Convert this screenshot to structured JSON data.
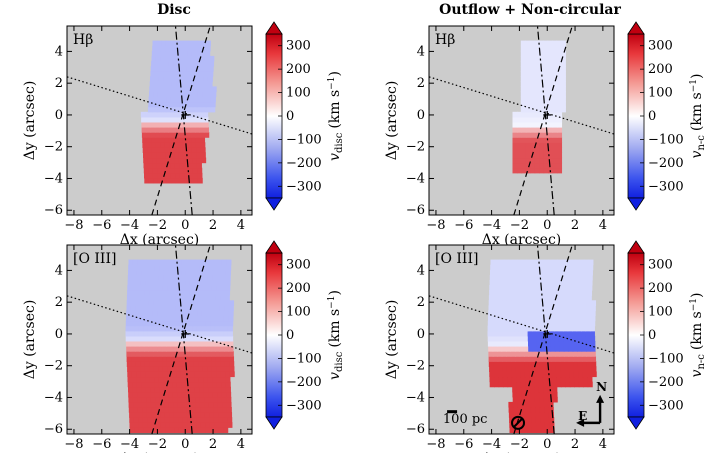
{
  "column_titles": [
    "Disc",
    "Outflow + Non-circular"
  ],
  "x_label": "Δx (arcsec)",
  "y_label": "Δy (arcsec)",
  "tick_labels": {
    "x": [
      "−8",
      "−6",
      "−4",
      "−2",
      "0",
      "2",
      "4"
    ],
    "y": [
      "−6",
      "−4",
      "−2",
      "0",
      "2",
      "4"
    ],
    "colorbar": [
      "300",
      "200",
      "100",
      "0",
      "−100",
      "−200",
      "−300"
    ]
  },
  "colorbar_labels": {
    "disc": {
      "symbol": "v",
      "sub": "disc",
      "unit": "(km s",
      "exp": "−1",
      "close": ")"
    },
    "noncirc": {
      "symbol": "v",
      "sub": "n-c",
      "unit": "(km s",
      "exp": "−1",
      "close": ")"
    }
  },
  "colors": {
    "background": "#cccccc",
    "positive": "#d7191c",
    "negative": "#1b3cf0",
    "zero": "#ffffff",
    "lines": "#000000"
  },
  "panels": [
    {
      "id": "disc-hbeta",
      "line": "Hβ",
      "column": "Disc",
      "row": "Hβ"
    },
    {
      "id": "noncirc-hbeta",
      "line": "Hβ",
      "column": "Outflow + Non-circular",
      "row": "Hβ"
    },
    {
      "id": "disc-oiii",
      "line": "[O III]",
      "column": "Disc",
      "row": "[O III]"
    },
    {
      "id": "noncirc-oiii",
      "line": "[O III]",
      "column": "Outflow + Non-circular",
      "row": "[O III]"
    }
  ],
  "annotations": {
    "scale_bar": "100 pc",
    "compass_north": "N",
    "compass_east": "E"
  },
  "chart_data": [
    {
      "type": "heatmap",
      "title": "Disc",
      "panel_label": "Hβ",
      "xlabel": "Δx (arcsec)",
      "ylabel": "Δy (arcsec)",
      "xlim": [
        -8.5,
        4.8
      ],
      "ylim": [
        -6.3,
        5.6
      ],
      "colorbar": {
        "label": "v_disc (km s−1)",
        "range": [
          -350,
          350
        ],
        "ticks": [
          300,
          200,
          100,
          0,
          -100,
          -200,
          -300
        ]
      },
      "reference_lines": {
        "dotted_major_axis": [
          [
            -8.5,
            2.4
          ],
          [
            4.8,
            -1.2
          ]
        ],
        "dashed_cone_edges": [
          [
            [
              -2.4,
              -6.3
            ],
            [
              1.8,
              5.6
            ]
          ],
          [
            [
              0.5,
              -6.3
            ],
            [
              -0.7,
              5.6
            ]
          ]
        ]
      },
      "velocity_field": {
        "north_side_kms": -110,
        "south_side_kms": 280,
        "transition_y_arcsec": -0.5
      }
    },
    {
      "type": "heatmap",
      "title": "Outflow + Non-circular",
      "panel_label": "Hβ",
      "xlabel": "Δx (arcsec)",
      "ylabel": "Δy (arcsec)",
      "xlim": [
        -8.5,
        4.8
      ],
      "ylim": [
        -6.3,
        5.6
      ],
      "colorbar": {
        "label": "v_n-c (km s−1)",
        "range": [
          -350,
          350
        ],
        "ticks": [
          300,
          200,
          100,
          0,
          -100,
          -200,
          -300
        ]
      },
      "velocity_field": {
        "north_side_kms": -40,
        "south_side_kms": 260,
        "transition_y_arcsec": -0.8
      }
    },
    {
      "type": "heatmap",
      "title": "Disc",
      "panel_label": "[O III]",
      "xlabel": "Δx (arcsec)",
      "ylabel": "Δy (arcsec)",
      "xlim": [
        -8.5,
        4.8
      ],
      "ylim": [
        -6.3,
        5.6
      ],
      "colorbar": {
        "label": "v_disc (km s−1)",
        "range": [
          -350,
          350
        ],
        "ticks": [
          300,
          200,
          100,
          0,
          -100,
          -200,
          -300
        ]
      },
      "velocity_field": {
        "north_side_kms": -110,
        "south_side_kms": 280,
        "transition_y_arcsec": -0.6
      }
    },
    {
      "type": "heatmap",
      "title": "Outflow + Non-circular",
      "panel_label": "[O III]",
      "xlabel": "Δx (arcsec)",
      "ylabel": "Δy (arcsec)",
      "xlim": [
        -8.5,
        4.8
      ],
      "ylim": [
        -6.3,
        5.6
      ],
      "colorbar": {
        "label": "v_n-c (km s−1)",
        "range": [
          -350,
          350
        ],
        "ticks": [
          300,
          200,
          100,
          0,
          -100,
          -200,
          -300
        ]
      },
      "velocity_field": {
        "north_side_kms": -60,
        "center_band_kms": -250,
        "south_side_kms": 300,
        "transition_y_arcsec": -1.0
      }
    }
  ]
}
